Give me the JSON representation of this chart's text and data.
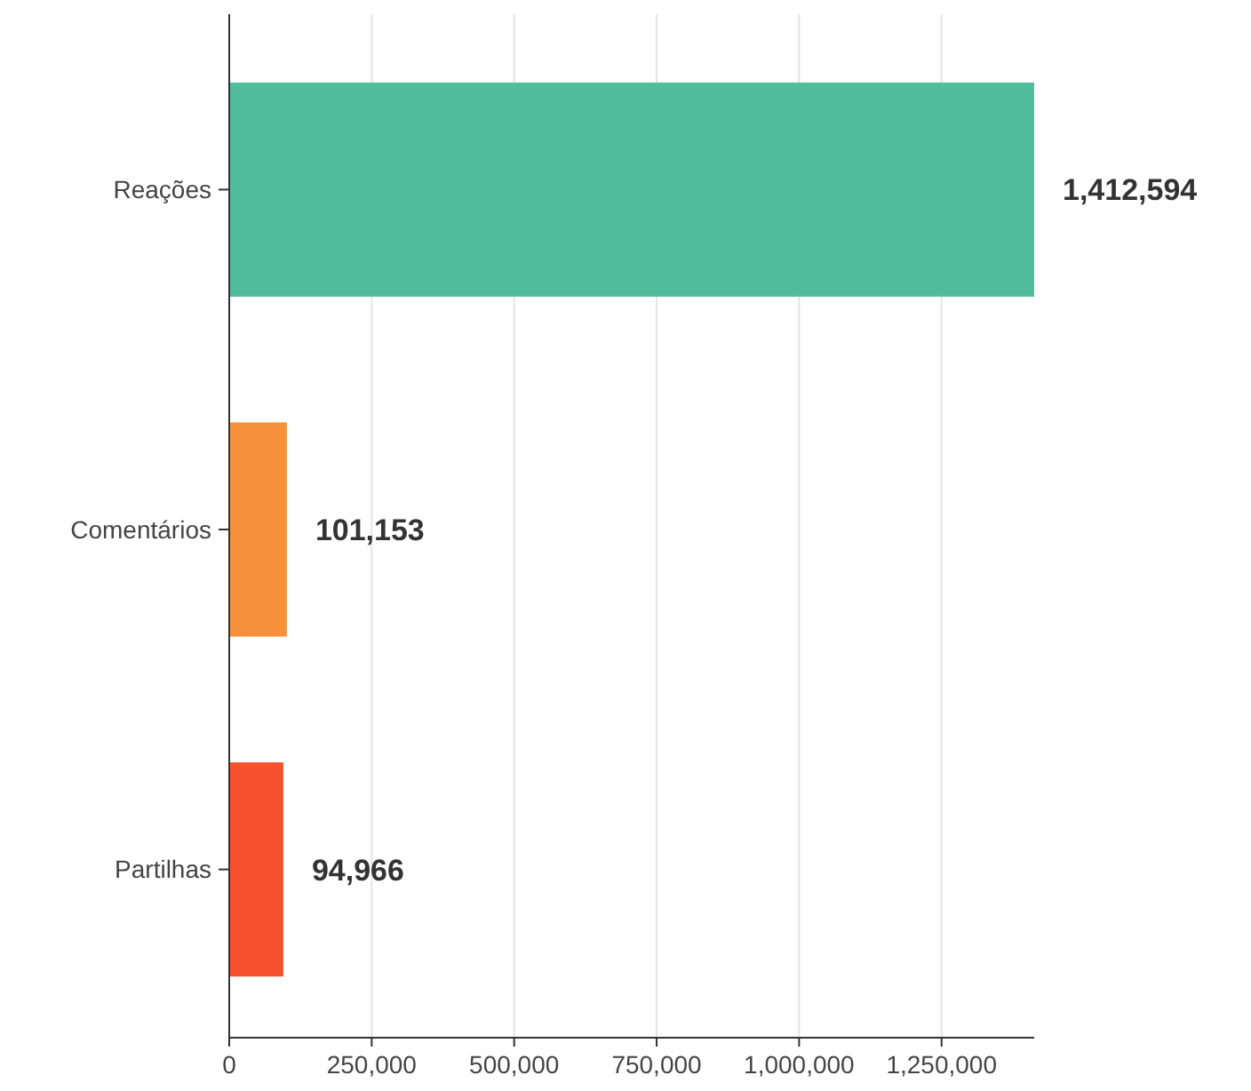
{
  "chart_data": {
    "type": "bar",
    "orientation": "horizontal",
    "categories": [
      "Reações",
      "Comentários",
      "Partilhas"
    ],
    "values": [
      1412594,
      101153,
      94966
    ],
    "colors": [
      "#52bd9b",
      "#f6903a",
      "#f5522d"
    ],
    "xlim": [
      0,
      1412594
    ],
    "xticks": [
      {
        "value": 0,
        "label": "0"
      },
      {
        "value": 250000,
        "label": "250,000"
      },
      {
        "value": 500000,
        "label": "500,000"
      },
      {
        "value": 750000,
        "label": "750,000"
      },
      {
        "value": 1000000,
        "label": "1,000,000"
      },
      {
        "value": 1250000,
        "label": "1,250,000"
      }
    ],
    "grid": "x",
    "value_labels": [
      "1,412,594",
      "101,153",
      "94,966"
    ]
  }
}
